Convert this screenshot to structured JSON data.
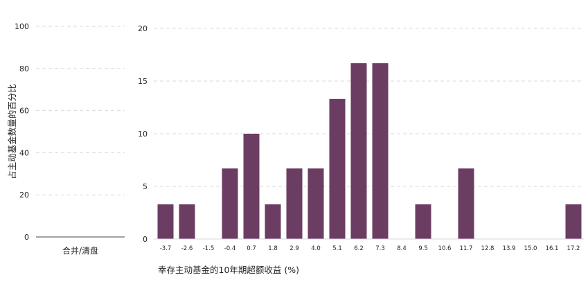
{
  "colors": {
    "bar": "#6b3d63",
    "grid": "#d9d9d9",
    "axis": "#444444",
    "text": "#222222"
  },
  "chart_data": [
    {
      "type": "bar",
      "title": "",
      "xlabel": "",
      "ylabel": "占主动基金数量的百分比",
      "categories": [
        "合并/清盘"
      ],
      "values": [
        0
      ],
      "ylim": [
        0,
        100
      ],
      "yticks": [
        0,
        20,
        40,
        60,
        80,
        100
      ],
      "grid": true
    },
    {
      "type": "bar",
      "title": "",
      "xlabel": "幸存主动基金的10年期超额收益 (%)",
      "ylabel": "",
      "categories": [
        "-3.7",
        "-2.6",
        "-1.5",
        "-0.4",
        "0.7",
        "1.8",
        "2.9",
        "4.0",
        "5.1",
        "6.2",
        "7.3",
        "8.4",
        "9.5",
        "10.6",
        "11.7",
        "12.8",
        "13.9",
        "15.0",
        "16.1",
        "17.2"
      ],
      "values": [
        3.3,
        3.3,
        0,
        6.7,
        10,
        3.3,
        6.7,
        6.7,
        13.3,
        16.7,
        16.7,
        0,
        3.3,
        0,
        6.7,
        0,
        0,
        0,
        0,
        3.3
      ],
      "ylim": [
        0,
        20
      ],
      "yticks": [
        0,
        5,
        10,
        15,
        20
      ],
      "grid": true
    }
  ]
}
